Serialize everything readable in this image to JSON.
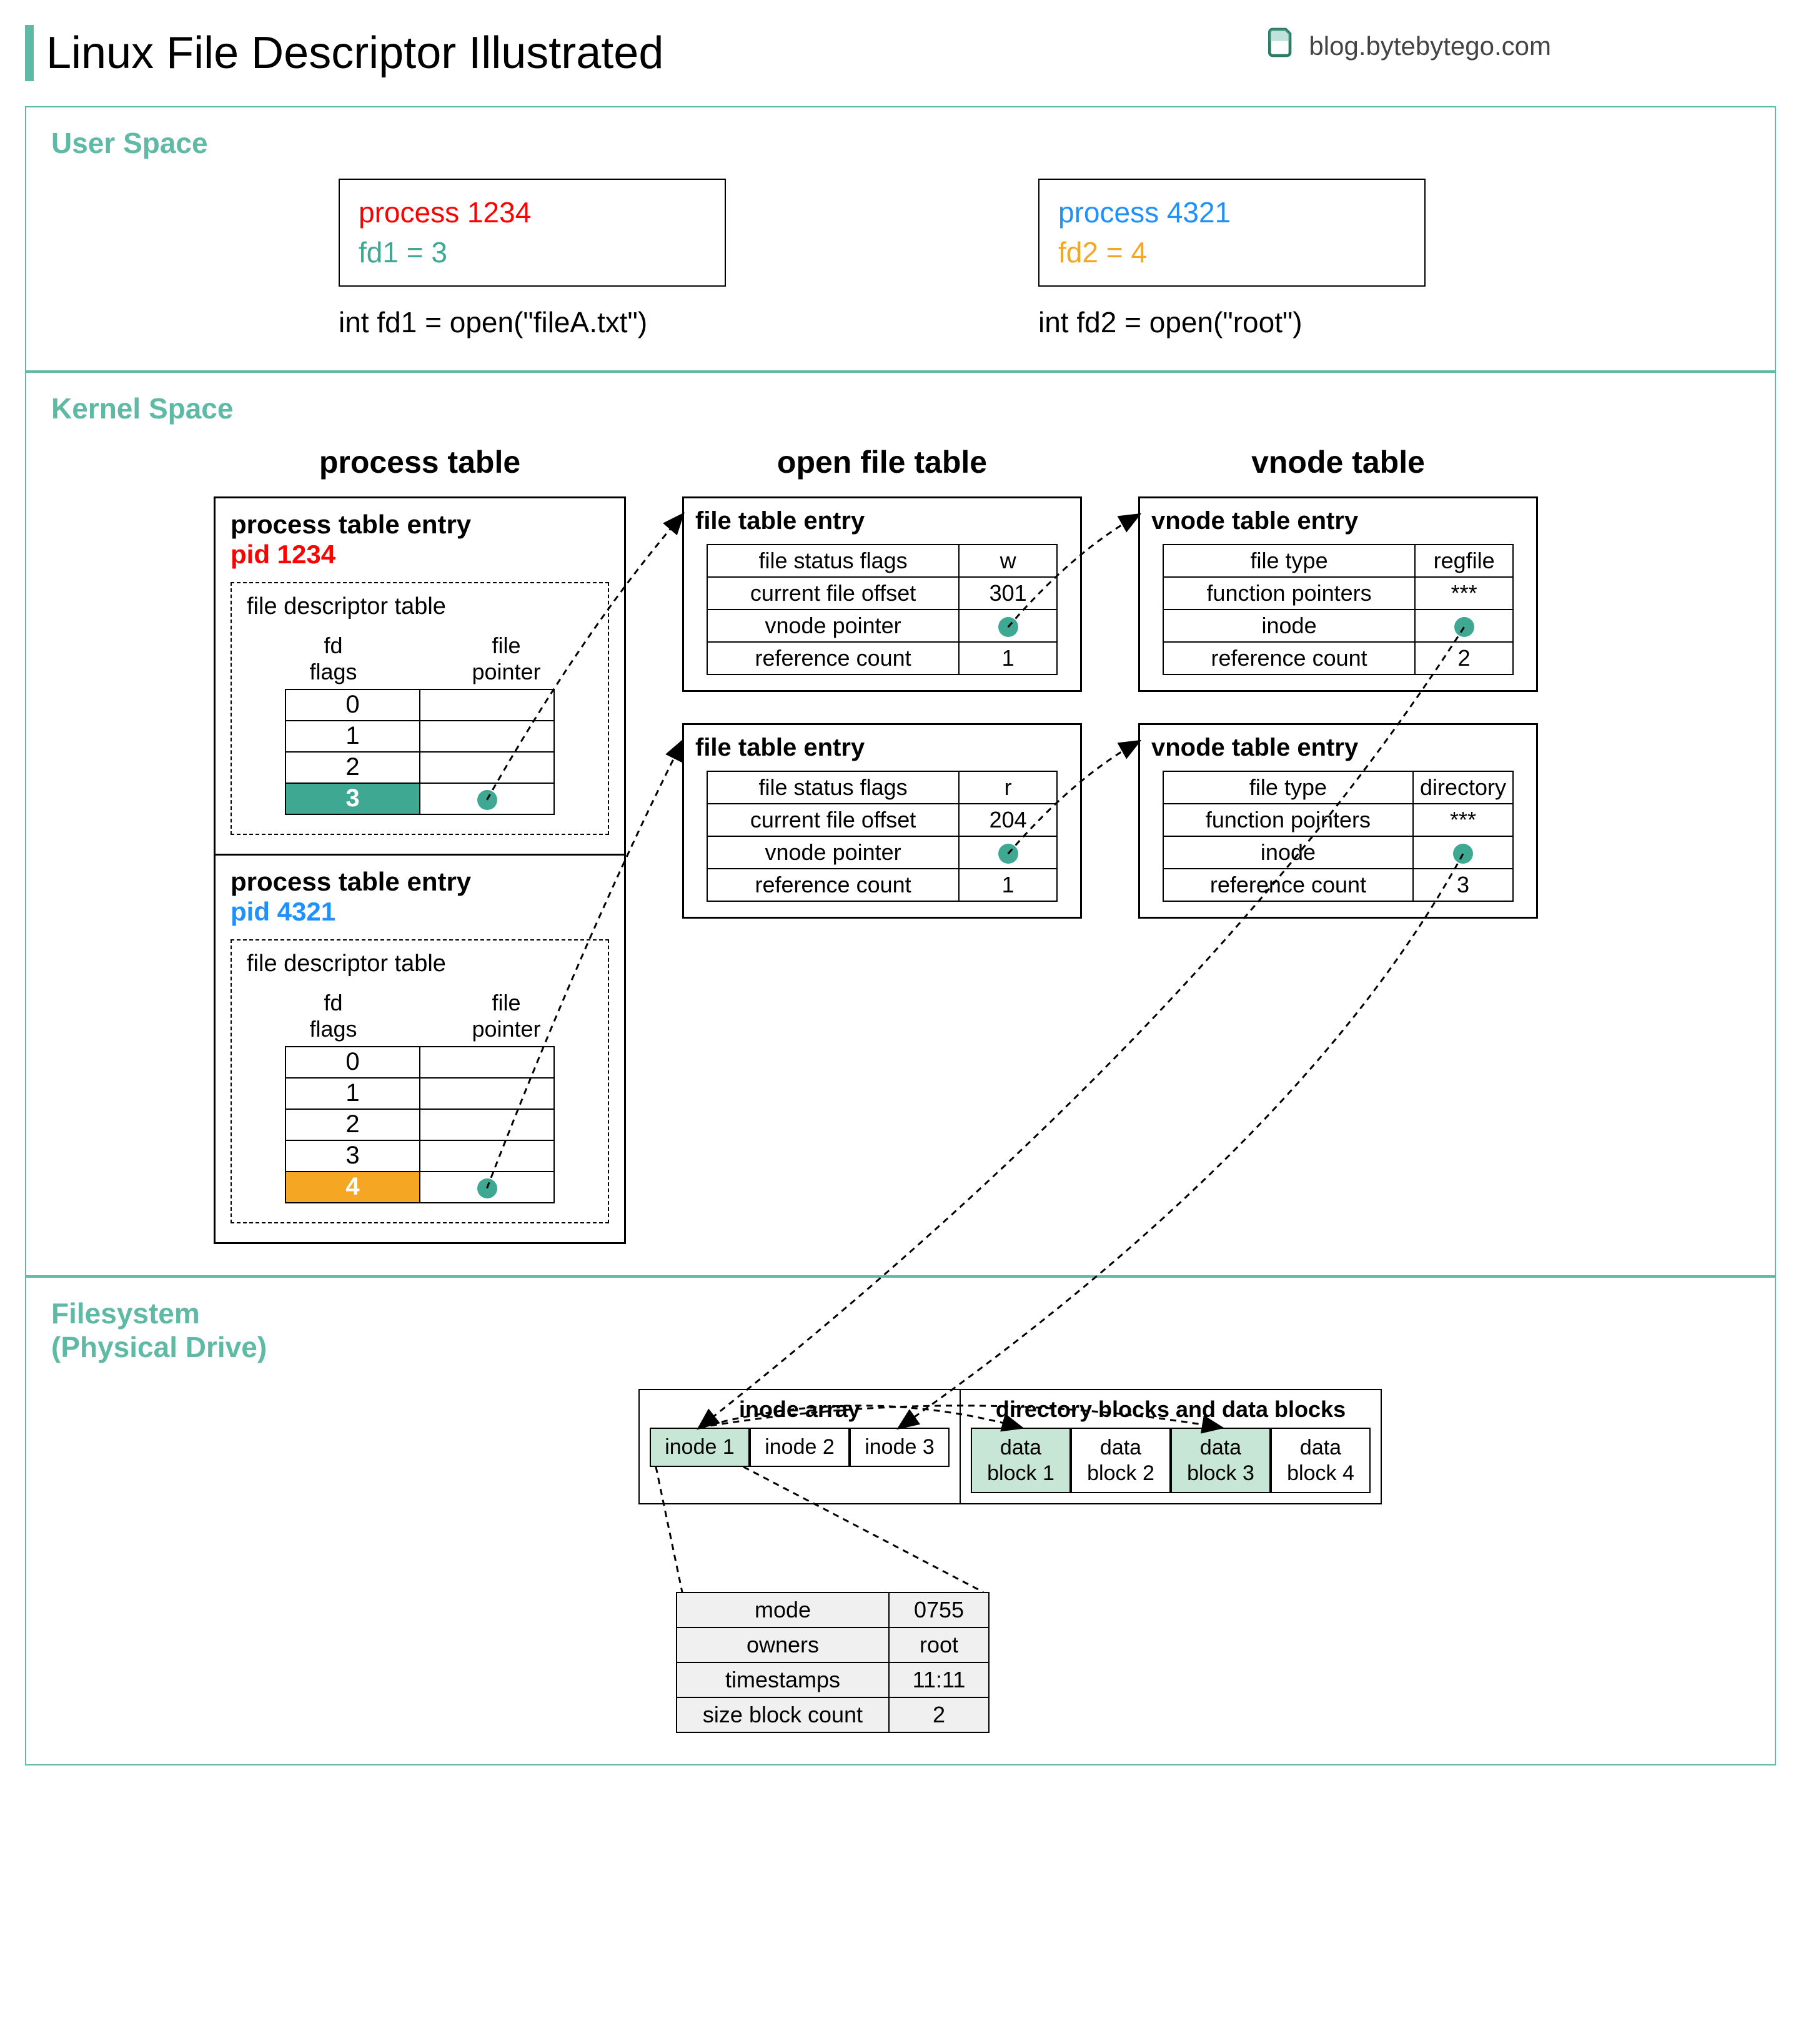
{
  "title": "Linux File Descriptor Illustrated",
  "blog": "blog.bytebytego.com",
  "colors": {
    "accent": "#5eb9a5",
    "red": "#ff0000",
    "blue": "#1e90ff",
    "teal": "#3ea893",
    "orange": "#f5a623",
    "teal_fill": "#3ea893",
    "orange_fill": "#f5a623",
    "inode_hl": "#c8e6d5",
    "block_hl": "#c8e6d5"
  },
  "sections": {
    "user": "User Space",
    "kernel": "Kernel Space",
    "fs": "Filesystem\n(Physical Drive)"
  },
  "user_space": {
    "p1": {
      "proc": "process 1234",
      "fd": "fd1 = 3",
      "call": "int fd1 = open(\"fileA.txt\")"
    },
    "p2": {
      "proc": "process 4321",
      "fd": "fd2 = 4",
      "call": "int fd2 = open(\"root\")"
    }
  },
  "kernel": {
    "titles": {
      "pt": "process table",
      "oft": "open file table",
      "vt": "vnode table"
    },
    "pte_label": "process table entry",
    "pid1": "pid 1234",
    "pid2": "pid 4321",
    "fdt_label": "file descriptor table",
    "fdt_headers": {
      "a": "fd\nflags",
      "b": "file\npointer"
    },
    "fdt1": {
      "rows": [
        {
          "idx": "0",
          "ptr": ""
        },
        {
          "idx": "1",
          "ptr": ""
        },
        {
          "idx": "2",
          "ptr": ""
        },
        {
          "idx": "3",
          "ptr": "dot",
          "hl": "teal"
        }
      ]
    },
    "fdt2": {
      "rows": [
        {
          "idx": "0",
          "ptr": ""
        },
        {
          "idx": "1",
          "ptr": ""
        },
        {
          "idx": "2",
          "ptr": ""
        },
        {
          "idx": "3",
          "ptr": ""
        },
        {
          "idx": "4",
          "ptr": "dot",
          "hl": "orange"
        }
      ]
    },
    "fte_label": "file table entry",
    "fte1": [
      {
        "k": "file status flags",
        "v": "w"
      },
      {
        "k": "current file offset",
        "v": "301"
      },
      {
        "k": "vnode pointer",
        "v": "dot"
      },
      {
        "k": "reference count",
        "v": "1"
      }
    ],
    "fte2": [
      {
        "k": "file status flags",
        "v": "r"
      },
      {
        "k": "current file offset",
        "v": "204"
      },
      {
        "k": "vnode pointer",
        "v": "dot"
      },
      {
        "k": "reference count",
        "v": "1"
      }
    ],
    "vte_label": "vnode table entry",
    "vte1": [
      {
        "k": "file type",
        "v": "regfile"
      },
      {
        "k": "function pointers",
        "v": "***"
      },
      {
        "k": "inode",
        "v": "dot"
      },
      {
        "k": "reference count",
        "v": "2"
      }
    ],
    "vte2": [
      {
        "k": "file type",
        "v": "directory"
      },
      {
        "k": "function pointers",
        "v": "***"
      },
      {
        "k": "inode",
        "v": "dot"
      },
      {
        "k": "reference count",
        "v": "3"
      }
    ]
  },
  "fs": {
    "inode_title": "inode array",
    "inodes": [
      "inode 1",
      "inode 2",
      "inode 3"
    ],
    "inode_hl_idx": 0,
    "blocks_title": "directory blocks and data blocks",
    "blocks": [
      "data\nblock 1",
      "data\nblock 2",
      "data\nblock 3",
      "data\nblock 4"
    ],
    "block_hl_idx": [
      0,
      2
    ],
    "detail": [
      {
        "k": "mode",
        "v": "0755"
      },
      {
        "k": "owners",
        "v": "root"
      },
      {
        "k": "timestamps",
        "v": "11:11"
      },
      {
        "k": "size block count",
        "v": "2"
      }
    ]
  },
  "arrows": [
    {
      "from": "fdt1-dot",
      "to": "fte1-box",
      "curve": 1
    },
    {
      "from": "fdt2-dot",
      "to": "fte2-box",
      "curve": 1
    },
    {
      "from": "fte1-vp",
      "to": "vte1-box",
      "curve": 1
    },
    {
      "from": "fte2-vp",
      "to": "vte2-box",
      "curve": 1
    },
    {
      "from": "vte1-inode",
      "to": "inode-1",
      "curve": -1
    },
    {
      "from": "vte2-inode",
      "to": "inode-3",
      "curve": -1
    },
    {
      "from": "inode-1",
      "to": "block-1",
      "curve": -1,
      "short": true
    },
    {
      "from": "inode-1",
      "to": "block-3",
      "curve": -1,
      "short": true
    },
    {
      "from": "inode-1",
      "to": "detail-table",
      "curve": 0,
      "dashed_only": true
    }
  ]
}
